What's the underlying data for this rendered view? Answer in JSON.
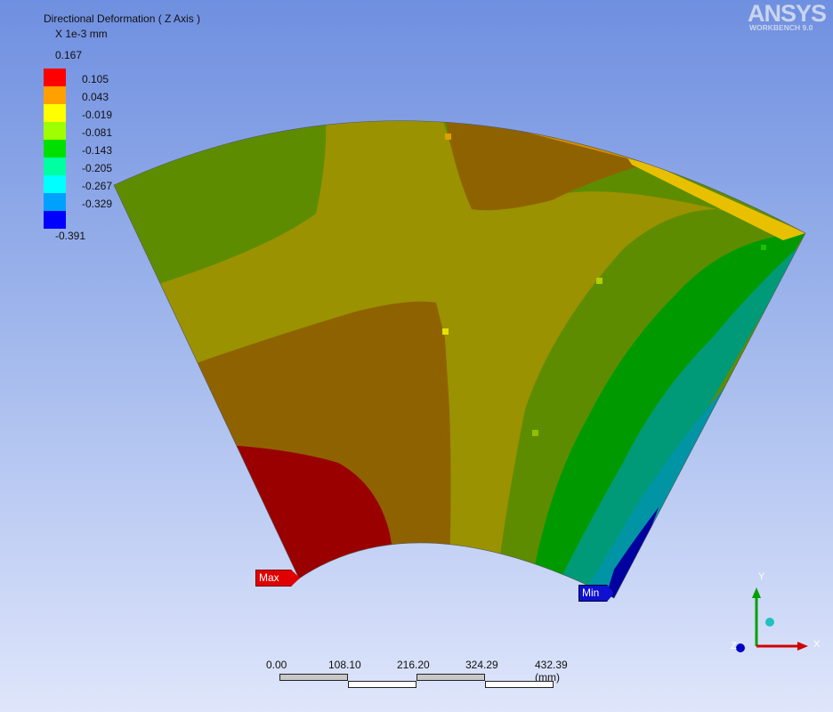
{
  "legend": {
    "title": "Directional Deformation ( Z Axis )",
    "unit": "X 1e-3 mm",
    "max": "0.167",
    "min": "-0.391",
    "levels": [
      {
        "label": "0.105",
        "color": "#ff0000"
      },
      {
        "label": "0.043",
        "color": "#ff9f00"
      },
      {
        "label": "-0.019",
        "color": "#ffff00"
      },
      {
        "label": "-0.081",
        "color": "#9fff00"
      },
      {
        "label": "-0.143",
        "color": "#00e000"
      },
      {
        "label": "-0.205",
        "color": "#00ffa0"
      },
      {
        "label": "-0.267",
        "color": "#00ffff"
      },
      {
        "label": "-0.329",
        "color": "#00a0ff"
      },
      {
        "label": "",
        "color": "#0000ff"
      }
    ]
  },
  "logo": {
    "name": "ANSYS",
    "sub": "WORKBENCH 9.0"
  },
  "probes": {
    "max_label": "Max",
    "min_label": "Min"
  },
  "scale_bar": {
    "ticks": [
      "0.00",
      "108.10",
      "216.20",
      "324.29",
      "432.39 (mm)"
    ]
  },
  "triad": {
    "x": "X",
    "y": "Y",
    "z": "Z"
  },
  "colors": {
    "dark_red": "#9a0000",
    "brown": "#8f6200",
    "olive": "#9a9200",
    "olive_green": "#5e8c00",
    "green": "#009a00",
    "teal": "#009a78",
    "cyan": "#0094a4",
    "blue": "#0000a0"
  }
}
